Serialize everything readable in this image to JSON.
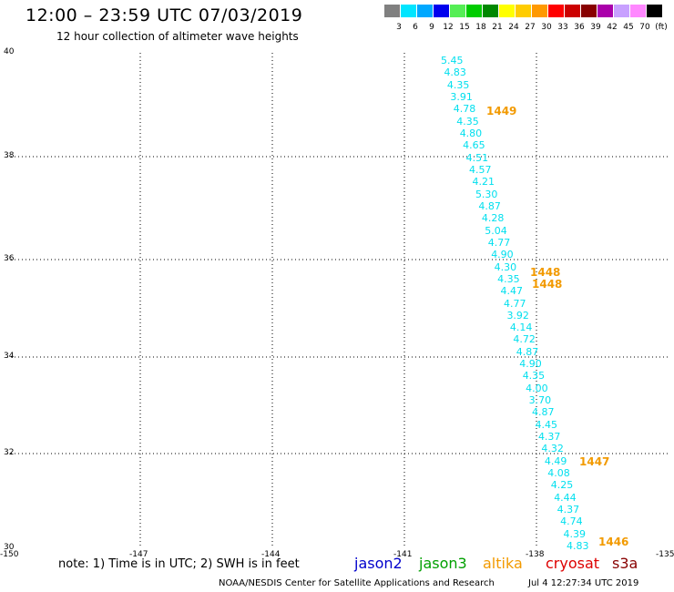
{
  "header": {
    "title": "12:00 – 23:59 UTC 07/03/2019",
    "subtitle": "12 hour collection of altimeter wave heights"
  },
  "scale": {
    "colors": [
      "#808080",
      "#00e5ff",
      "#00a8ff",
      "#0000ee",
      "#55ee55",
      "#00cc00",
      "#008800",
      "#ffff00",
      "#ffcc00",
      "#ff9900",
      "#ff0000",
      "#cc0000",
      "#880000",
      "#aa00aa",
      "#c8a0ff",
      "#ff88ff",
      "#000000"
    ],
    "labels": [
      "3",
      "6",
      "9",
      "12",
      "15",
      "18",
      "21",
      "24",
      "27",
      "30",
      "33",
      "36",
      "39",
      "42",
      "45",
      "70",
      "(ft)"
    ]
  },
  "map": {
    "lat_range": [
      30,
      40
    ],
    "lon_range": [
      -150,
      -135
    ],
    "lat_ticks": [
      "40",
      "38",
      "36",
      "34",
      "32",
      "30"
    ],
    "lon_ticks": [
      "-150",
      "-147",
      "-144",
      "-141",
      "-138",
      "-135"
    ],
    "wave_heights": [
      "5.45",
      "4.83",
      "4.35",
      "3.91",
      "4.78",
      "4.35",
      "4.80",
      "4.65",
      "4.51",
      "4.57",
      "4.21",
      "5.30",
      "4.87",
      "4.28",
      "5.04",
      "4.77",
      "4.90",
      "4.30",
      "4.35",
      "4.47",
      "4.77",
      "3.92",
      "4.14",
      "4.72",
      "4.87",
      "4.90",
      "4.35",
      "4.00",
      "3.70",
      "4.87",
      "4.45",
      "4.37",
      "4.32",
      "4.49",
      "4.08",
      "4.25",
      "4.44",
      "4.37",
      "4.74",
      "4.39",
      "4.83"
    ],
    "pass_times": [
      "1449",
      "1448",
      "1448",
      "1447",
      "1446"
    ]
  },
  "footer": {
    "note": "note: 1) Time is in UTC; 2) SWH is in feet",
    "satellites": [
      {
        "name": "jason2",
        "color": "#0000cc"
      },
      {
        "name": "jason3",
        "color": "#00a000"
      },
      {
        "name": "altika",
        "color": "#f29a00"
      },
      {
        "name": "cryosat",
        "color": "#dd0000"
      },
      {
        "name": "s3a",
        "color": "#880000"
      }
    ],
    "credit": "NOAA/NESDIS Center for Satellite Applications and Research",
    "timestamp": "Jul  4 12:27:34 UTC 2019"
  }
}
